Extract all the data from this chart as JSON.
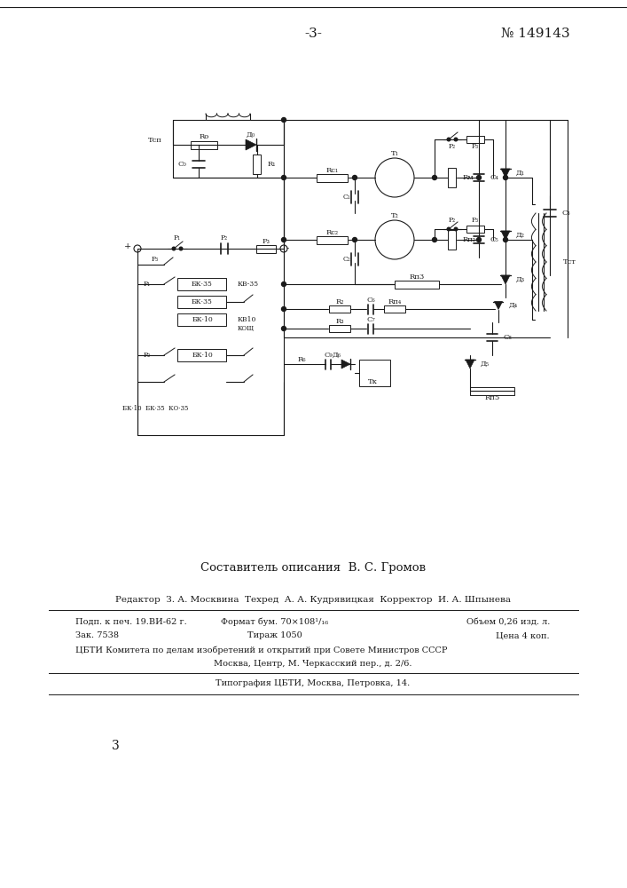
{
  "page_number_center": "-3-",
  "patent_number": "№ 149143",
  "composer_text": "Составитель описания  В. С. Громов",
  "editor_line": "Редактор  З. А. Москвина  Техред  А. А. Кудрявицкая  Корректор  И. А. Шпынева",
  "info_line1a": "Подп. к печ. 19.ВИ-62 г.",
  "info_line1b": "Формат бум. 70×108¹/₁₆",
  "info_line1c": "Объем 0,26 изд. л.",
  "info_line2a": "Зак. 7538",
  "info_line2b": "Тираж 1050",
  "info_line2c": "Цена 4 коп.",
  "info_line3": "ЦБТИ Комитета по делам изобретений и открытий при Совете Министров СССР",
  "info_line4": "Москва, Центр, М. Черкасский пер., д. 2/6.",
  "info_line5": "Типография ЦБТИ, Москва, Петровка, 14.",
  "bottom_page_num": "3",
  "bg_color": "#ffffff",
  "text_color": "#1a1a1a",
  "line_color": "#000000"
}
